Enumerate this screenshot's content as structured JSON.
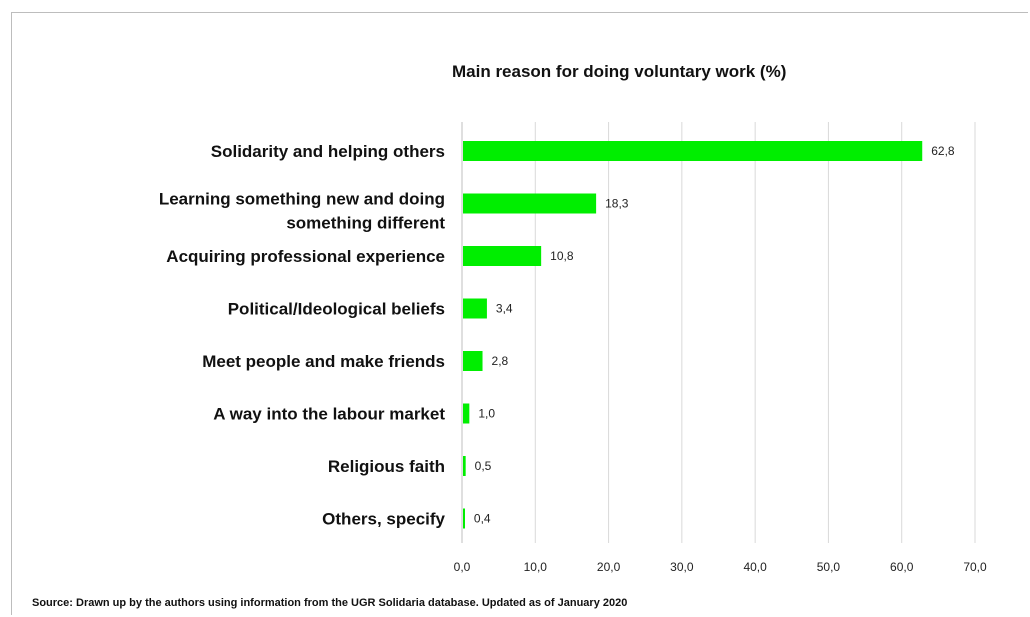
{
  "chart_data": {
    "type": "bar",
    "orientation": "horizontal",
    "title": "Main reason for doing voluntary work (%)",
    "categories": [
      "Solidarity and helping others",
      "Learning something new and doing something different",
      "Acquiring professional experience",
      "Political/Ideological beliefs",
      "Meet people and make friends",
      "A way into the labour market",
      "Religious faith",
      "Others, specify"
    ],
    "category_lines": [
      [
        "Solidarity and helping others"
      ],
      [
        "Learning something new and doing",
        "something different"
      ],
      [
        "Acquiring professional experience"
      ],
      [
        "Political/Ideological beliefs"
      ],
      [
        "Meet people and make friends"
      ],
      [
        "A way into the labour market"
      ],
      [
        "Religious faith"
      ],
      [
        "Others, specify"
      ]
    ],
    "values": [
      62.8,
      18.3,
      10.8,
      3.4,
      2.8,
      1.0,
      0.5,
      0.4
    ],
    "data_labels": [
      "62,8",
      "18,3",
      "10,8",
      "3,4",
      "2,8",
      "1,0",
      "0,5",
      "0,4"
    ],
    "xlim": [
      0,
      70
    ],
    "xticks": [
      0,
      10,
      20,
      30,
      40,
      50,
      60,
      70
    ],
    "xtick_labels": [
      "0,0",
      "10,0",
      "20,0",
      "30,0",
      "40,0",
      "50,0",
      "60,0",
      "70,0"
    ],
    "xlabel": "",
    "ylabel": "",
    "grid": true,
    "legend": false,
    "bar_color": "#00ee00",
    "grid_color": "#d9d9d9"
  },
  "source_note": "Source: Drawn up by the authors using information from the UGR Solidaria database. Updated as of January 2020"
}
